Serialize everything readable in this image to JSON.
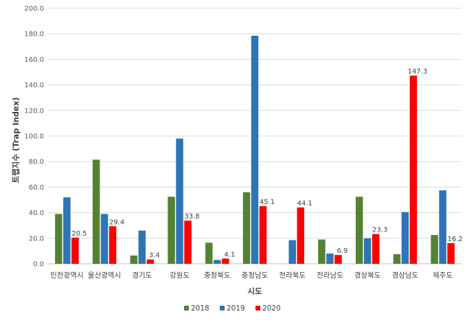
{
  "chart_data": {
    "type": "bar",
    "title": "",
    "xlabel": "시도",
    "ylabel": "트랩지수 (Trap Index)",
    "ylim": [
      0,
      200
    ],
    "yticks": [
      "0.0",
      "20.0",
      "40.0",
      "60.0",
      "80.0",
      "100.0",
      "120.0",
      "140.0",
      "160.0",
      "180.0",
      "200.0"
    ],
    "grid": true,
    "legend_position": "bottom",
    "categories": [
      "인천광역시",
      "울산광역시",
      "경기도",
      "강원도",
      "충청북도",
      "충청남도",
      "전라북도",
      "전라남도",
      "경상북도",
      "경상남도",
      "제주도"
    ],
    "series": [
      {
        "name": "2018",
        "color": "#548235",
        "values": [
          39.0,
          81.5,
          6.5,
          52.5,
          16.5,
          56.0,
          0,
          19.0,
          52.5,
          7.5,
          22.5
        ]
      },
      {
        "name": "2019",
        "color": "#2E75B6",
        "values": [
          52.0,
          39.0,
          26.0,
          98.0,
          3.0,
          178.5,
          18.5,
          8.0,
          20.0,
          40.5,
          57.5
        ]
      },
      {
        "name": "2020",
        "color": "#FF0000",
        "values": [
          20.5,
          29.4,
          3.4,
          33.8,
          4.1,
          45.1,
          44.1,
          6.9,
          23.3,
          147.3,
          16.2
        ]
      }
    ],
    "data_labels": {
      "series": "2020",
      "labels": [
        "20.5",
        "29.4",
        "3.4",
        "33.8",
        "4.1",
        "45.1",
        "44.1",
        "6.9",
        "23.3",
        "147.3",
        "16.2"
      ]
    }
  }
}
